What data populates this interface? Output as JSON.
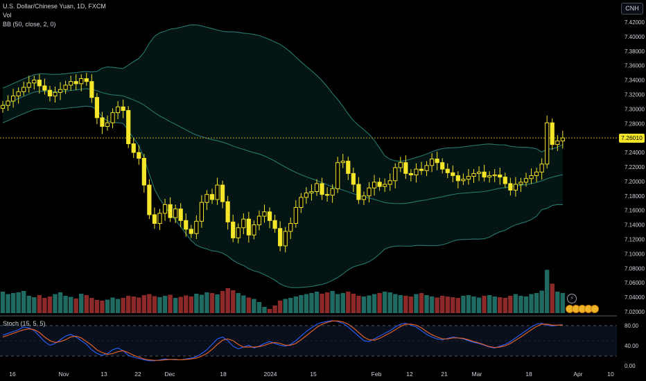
{
  "header": {
    "symbol": "U.S. Dollar/Chinese Yuan, 1D, FXCM",
    "volume_label": "Vol",
    "bb_label": "BB (50, close, 2, 0)",
    "currency": "CNH"
  },
  "price_tag": "7.26010",
  "stoch": {
    "label": "Stoch (15, 5, 5)",
    "axis_ticks": [
      "80.00",
      "40.00",
      "0.00"
    ],
    "upper_band": 80,
    "lower_band": 20
  },
  "colors": {
    "up": "#f5e62a",
    "down": "#f5e62a",
    "vol_up": "#1f6b63",
    "vol_down": "#8c2a2a",
    "bb": "#26786e",
    "stoch_k": "#2962ff",
    "stoch_d": "#e0622a",
    "last_price": "#c9a227"
  },
  "chart_data": {
    "type": "candlestick",
    "title": "U.S. Dollar/Chinese Yuan, 1D, FXCM",
    "ylim": [
      7.02,
      7.43
    ],
    "y_ticks": [
      "7.42000",
      "7.40000",
      "7.38000",
      "7.36000",
      "7.34000",
      "7.32000",
      "7.30000",
      "7.28000",
      "7.26000",
      "7.24000",
      "7.22000",
      "7.20000",
      "7.18000",
      "7.16000",
      "7.14000",
      "7.12000",
      "7.10000",
      "7.08000",
      "7.06000",
      "7.04000",
      "7.02000"
    ],
    "x_ticks": [
      "16",
      "Nov",
      "13",
      "22",
      "Dec",
      "18",
      "2024",
      "15",
      "Feb",
      "12",
      "21",
      "Mar",
      "18",
      "Apr",
      "10"
    ],
    "last_price": 7.2601,
    "close_series": [
      7.305,
      7.311,
      7.318,
      7.324,
      7.33,
      7.336,
      7.34,
      7.332,
      7.326,
      7.318,
      7.323,
      7.327,
      7.333,
      7.338,
      7.335,
      7.342,
      7.338,
      7.316,
      7.288,
      7.276,
      7.281,
      7.295,
      7.303,
      7.298,
      7.252,
      7.24,
      7.232,
      7.195,
      7.154,
      7.142,
      7.156,
      7.168,
      7.15,
      7.162,
      7.146,
      7.134,
      7.128,
      7.145,
      7.171,
      7.182,
      7.175,
      7.195,
      7.172,
      7.144,
      7.122,
      7.136,
      7.148,
      7.126,
      7.14,
      7.152,
      7.158,
      7.146,
      7.135,
      7.111,
      7.131,
      7.142,
      7.164,
      7.178,
      7.184,
      7.186,
      7.197,
      7.182,
      7.181,
      7.19,
      7.226,
      7.228,
      7.211,
      7.196,
      7.175,
      7.18,
      7.191,
      7.199,
      7.193,
      7.196,
      7.201,
      7.219,
      7.226,
      7.211,
      7.209,
      7.217,
      7.215,
      7.222,
      7.231,
      7.226,
      7.217,
      7.212,
      7.208,
      7.201,
      7.203,
      7.207,
      7.211,
      7.213,
      7.206,
      7.208,
      7.209,
      7.206,
      7.197,
      7.188,
      7.196,
      7.199,
      7.204,
      7.208,
      7.213,
      7.224,
      7.281,
      7.251,
      7.256,
      7.2601
    ],
    "volume_series": [
      0.62,
      0.55,
      0.58,
      0.6,
      0.64,
      0.5,
      0.46,
      0.52,
      0.44,
      0.48,
      0.55,
      0.6,
      0.5,
      0.47,
      0.42,
      0.56,
      0.52,
      0.44,
      0.38,
      0.36,
      0.39,
      0.45,
      0.41,
      0.44,
      0.5,
      0.48,
      0.45,
      0.52,
      0.55,
      0.49,
      0.46,
      0.5,
      0.53,
      0.44,
      0.47,
      0.51,
      0.48,
      0.56,
      0.53,
      0.6,
      0.58,
      0.54,
      0.64,
      0.72,
      0.66,
      0.58,
      0.51,
      0.45,
      0.41,
      0.32,
      0.18,
      0.12,
      0.22,
      0.36,
      0.41,
      0.44,
      0.48,
      0.52,
      0.55,
      0.58,
      0.62,
      0.56,
      0.6,
      0.64,
      0.55,
      0.58,
      0.62,
      0.56,
      0.5,
      0.48,
      0.51,
      0.55,
      0.58,
      0.62,
      0.6,
      0.55,
      0.52,
      0.5,
      0.48,
      0.55,
      0.58,
      0.52,
      0.48,
      0.45,
      0.5,
      0.48,
      0.46,
      0.44,
      0.5,
      0.52,
      0.48,
      0.45,
      0.5,
      0.52,
      0.48,
      0.46,
      0.44,
      0.5,
      0.55,
      0.5,
      0.48,
      0.55,
      0.58,
      0.65,
      1.25,
      0.85,
      0.62,
      0.58
    ],
    "stoch_k": [
      62,
      66,
      70,
      74,
      80,
      78,
      72,
      60,
      48,
      40,
      44,
      52,
      60,
      64,
      58,
      50,
      42,
      30,
      22,
      18,
      22,
      30,
      34,
      28,
      18,
      14,
      11,
      8,
      6,
      6,
      8,
      10,
      9,
      8,
      8,
      10,
      12,
      15,
      22,
      30,
      42,
      54,
      58,
      50,
      38,
      32,
      36,
      40,
      34,
      38,
      44,
      48,
      44,
      40,
      38,
      42,
      50,
      60,
      70,
      78,
      86,
      90,
      92,
      94,
      92,
      88,
      80,
      70,
      60,
      50,
      48,
      54,
      60,
      66,
      72,
      80,
      86,
      88,
      84,
      80,
      72,
      64,
      58,
      54,
      52,
      55,
      58,
      56,
      54,
      50,
      46,
      44,
      40,
      36,
      34,
      38,
      42,
      48,
      56,
      64,
      72,
      80,
      86,
      88,
      84,
      82,
      84,
      85
    ],
    "stoch_d": [
      58,
      62,
      66,
      70,
      74,
      76,
      74,
      68,
      58,
      50,
      46,
      48,
      52,
      58,
      60,
      56,
      48,
      40,
      30,
      24,
      20,
      22,
      26,
      28,
      24,
      18,
      14,
      10,
      8,
      7,
      7,
      8,
      9,
      9,
      8,
      9,
      10,
      12,
      16,
      22,
      31,
      42,
      51,
      54,
      50,
      42,
      36,
      36,
      36,
      37,
      40,
      44,
      46,
      44,
      40,
      40,
      44,
      52,
      61,
      70,
      79,
      86,
      90,
      93,
      93,
      91,
      86,
      78,
      68,
      58,
      52,
      51,
      55,
      61,
      67,
      74,
      81,
      86,
      86,
      84,
      78,
      70,
      63,
      58,
      54,
      54,
      56,
      56,
      55,
      52,
      48,
      45,
      41,
      37,
      35,
      36,
      39,
      44,
      51,
      58,
      66,
      74,
      81,
      86,
      86,
      84,
      84,
      84
    ]
  }
}
